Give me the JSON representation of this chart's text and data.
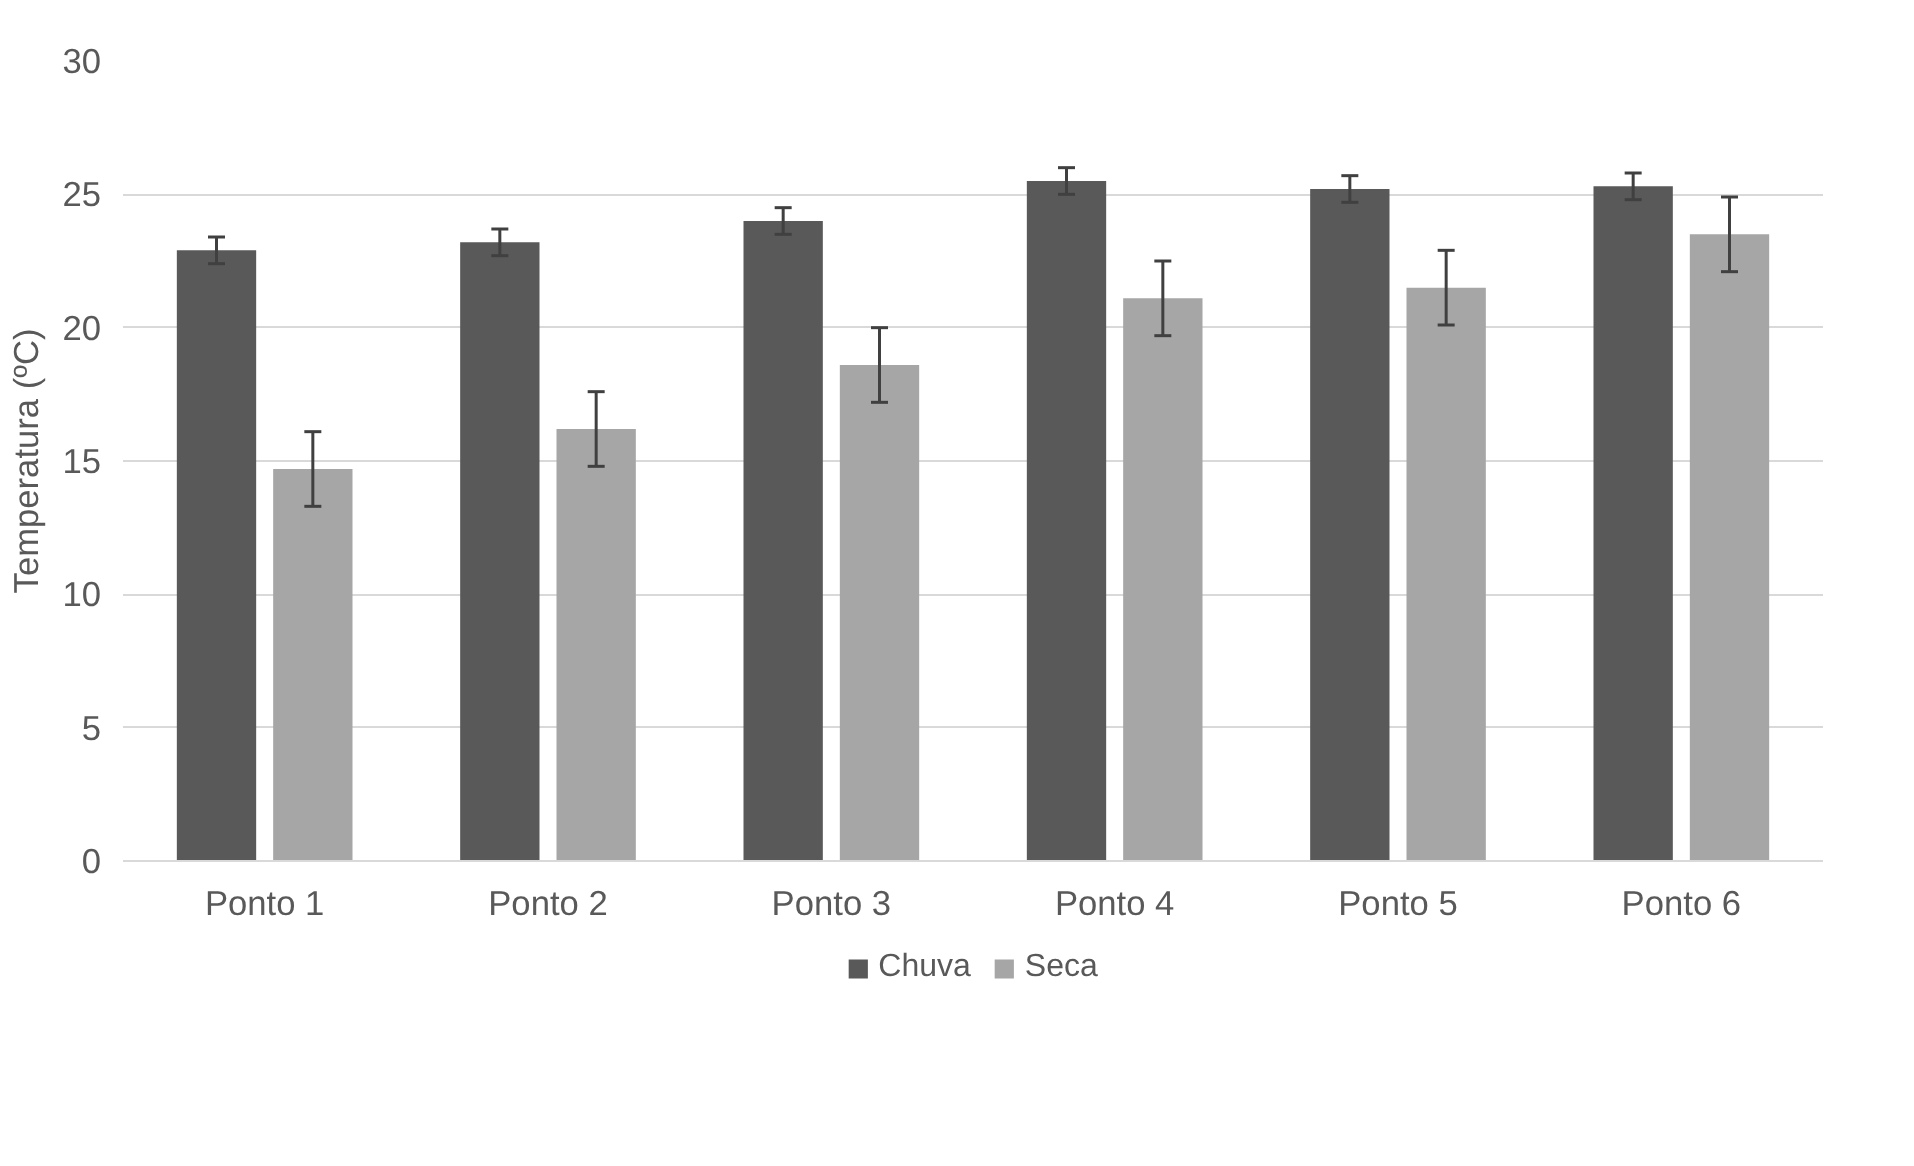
{
  "chart_data": {
    "type": "bar",
    "ylabel": "Temperatura (ºC)",
    "categories": [
      "Ponto 1",
      "Ponto 2",
      "Ponto 3",
      "Ponto 4",
      "Ponto 5",
      "Ponto 6"
    ],
    "series": [
      {
        "name": "Chuva",
        "color": "#595959",
        "values": [
          22.9,
          23.2,
          24.0,
          25.5,
          25.2,
          25.3
        ],
        "errors": [
          0.5,
          0.5,
          0.5,
          0.5,
          0.5,
          0.5
        ]
      },
      {
        "name": "Seca",
        "color": "#a6a6a6",
        "values": [
          14.7,
          16.2,
          18.6,
          21.1,
          21.5,
          23.5
        ],
        "errors": [
          1.4,
          1.4,
          1.4,
          1.4,
          1.4,
          1.4
        ]
      }
    ],
    "ylim": [
      0,
      30
    ],
    "yticks": [
      0,
      5,
      10,
      15,
      20,
      25,
      30
    ],
    "grid": "y",
    "legend": "bottom"
  }
}
